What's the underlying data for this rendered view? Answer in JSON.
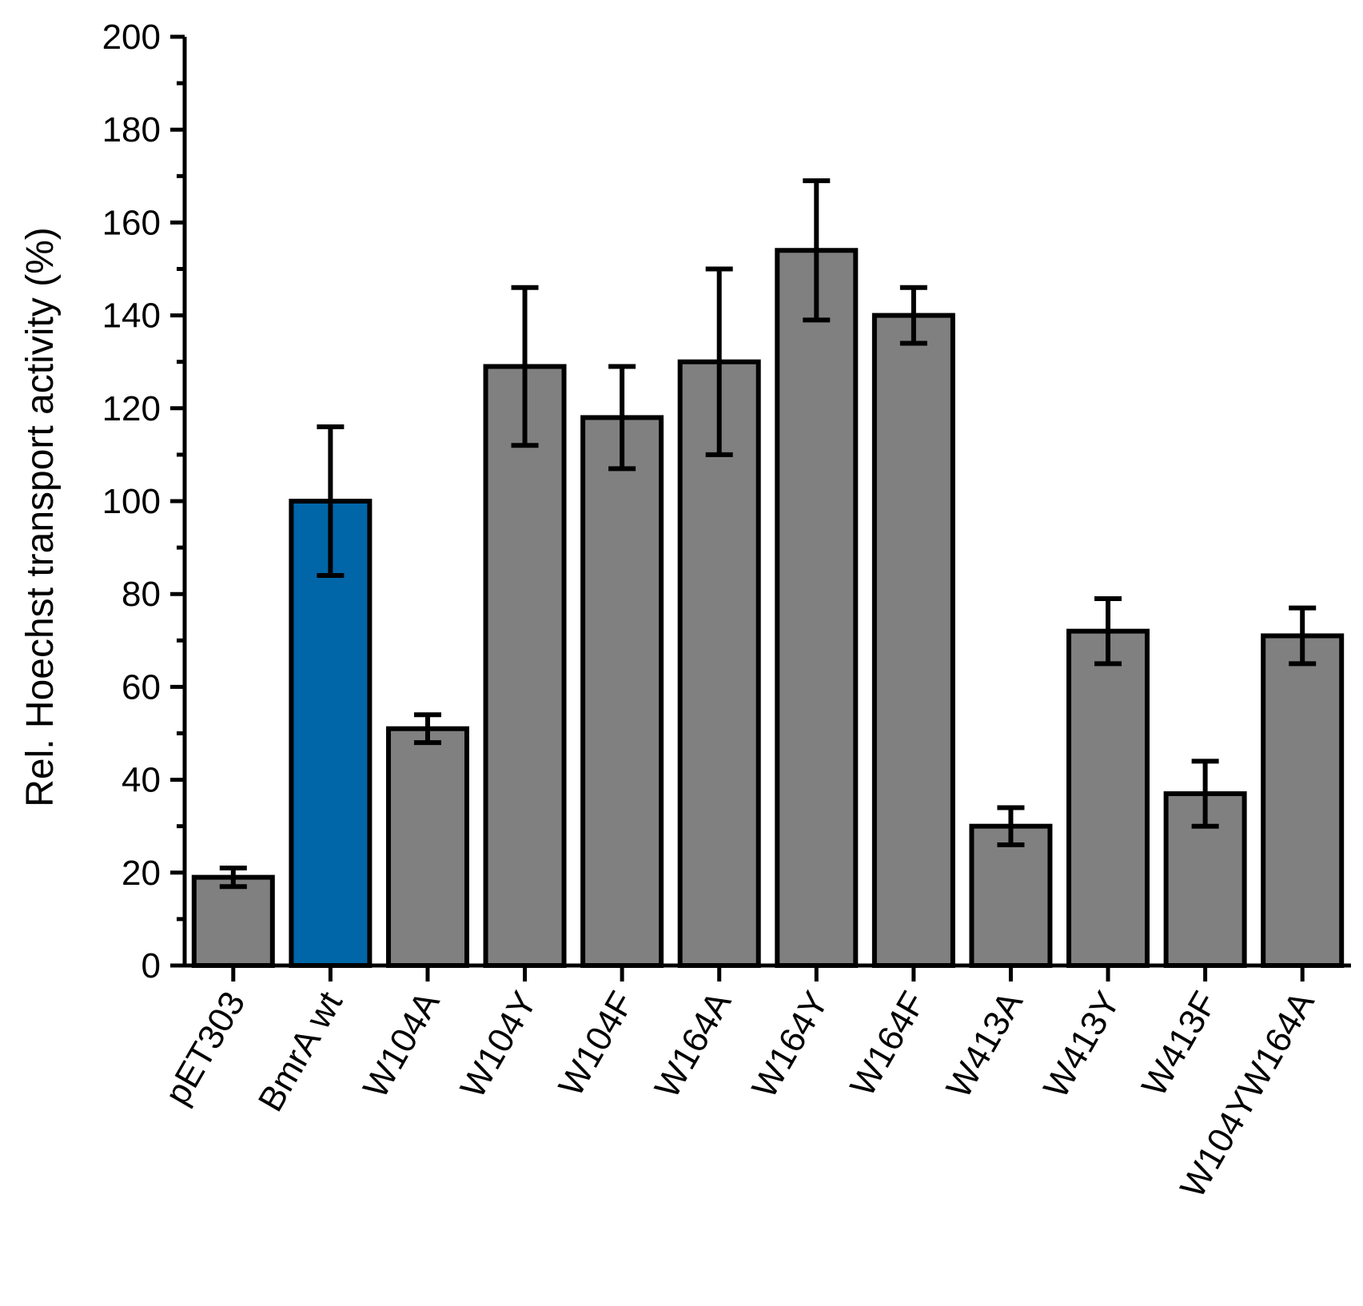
{
  "chart_data": {
    "type": "bar",
    "title": "",
    "xlabel": "",
    "ylabel": "Rel. Hoechst transport activity (%)",
    "ylim": [
      0,
      200
    ],
    "yticks": [
      0,
      20,
      40,
      60,
      80,
      100,
      120,
      140,
      160,
      180,
      200
    ],
    "grid": false,
    "categories": [
      "pET303",
      "BmrA wt",
      "W104A",
      "W104Y",
      "W104F",
      "W164A",
      "W164Y",
      "W164F",
      "W413A",
      "W413Y",
      "W413F",
      "W104YW164A"
    ],
    "values": [
      19,
      100,
      51,
      129,
      118,
      130,
      154,
      140,
      30,
      72,
      37,
      71
    ],
    "errors": [
      2,
      16,
      3,
      17,
      11,
      20,
      15,
      6,
      4,
      7,
      7,
      6
    ],
    "colors": [
      "#808080",
      "#0066A8",
      "#808080",
      "#808080",
      "#808080",
      "#808080",
      "#808080",
      "#808080",
      "#808080",
      "#808080",
      "#808080",
      "#808080"
    ]
  }
}
